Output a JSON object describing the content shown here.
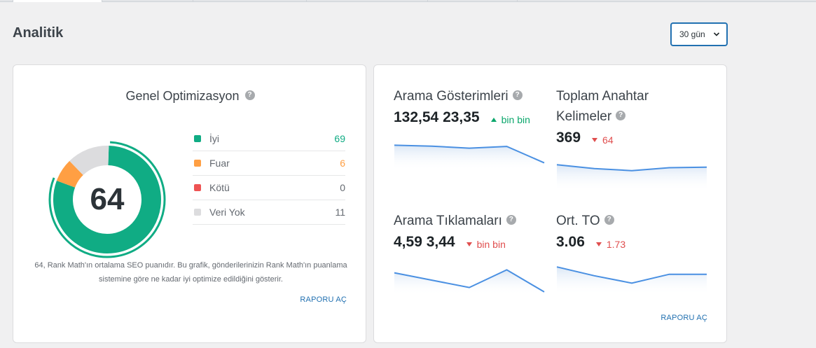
{
  "page": {
    "title": "Analitik"
  },
  "period_select": {
    "value": "30 gün"
  },
  "overall": {
    "title": "Genel Optimizasyon",
    "score": "64",
    "legend": [
      {
        "label": "İyi",
        "count": "69",
        "color": "#10ac84",
        "count_color": "#10ac84"
      },
      {
        "label": "Fuar",
        "count": "6",
        "color": "#ff9f43",
        "count_color": "#ff9f43"
      },
      {
        "label": "Kötü",
        "count": "0",
        "color": "#ee5353",
        "count_color": "#646970"
      },
      {
        "label": "Veri Yok",
        "count": "11",
        "color": "#dcdcde",
        "count_color": "#646970"
      }
    ],
    "description": "64, Rank Math'ın ortalama SEO puanıdır. Bu grafik, gönderilerinizin Rank Math'ın puanlama sistemine göre ne kadar iyi optimize edildiğini gösterir.",
    "report_link": "RAPORU AÇ"
  },
  "metrics": [
    {
      "title": "Arama Gösterimleri",
      "value": "132,54 23,35",
      "change": "bin bin",
      "direction": "up",
      "trend": [
        0.8,
        0.77,
        0.7,
        0.76,
        0.2
      ]
    },
    {
      "title": "Toplam Anahtar Kelimeler",
      "value": "369",
      "change": "64",
      "direction": "down",
      "trend": [
        0.85,
        0.72,
        0.65,
        0.75,
        0.77
      ]
    },
    {
      "title": "Arama Tıklamaları",
      "value": "4,59 3,44",
      "change": "bin bin",
      "direction": "down",
      "trend": [
        0.7,
        0.45,
        0.2,
        0.8,
        0.05
      ]
    },
    {
      "title": "Ort. TO",
      "value": "3.06",
      "change": "1.73",
      "direction": "down",
      "trend": [
        0.9,
        0.6,
        0.35,
        0.65,
        0.65
      ]
    }
  ],
  "right_report_link": "RAPORU AÇ",
  "colors": {
    "accent": "#2271b1",
    "good": "#10ac84",
    "warn": "#ff9f43",
    "line": "#4a90e2"
  }
}
